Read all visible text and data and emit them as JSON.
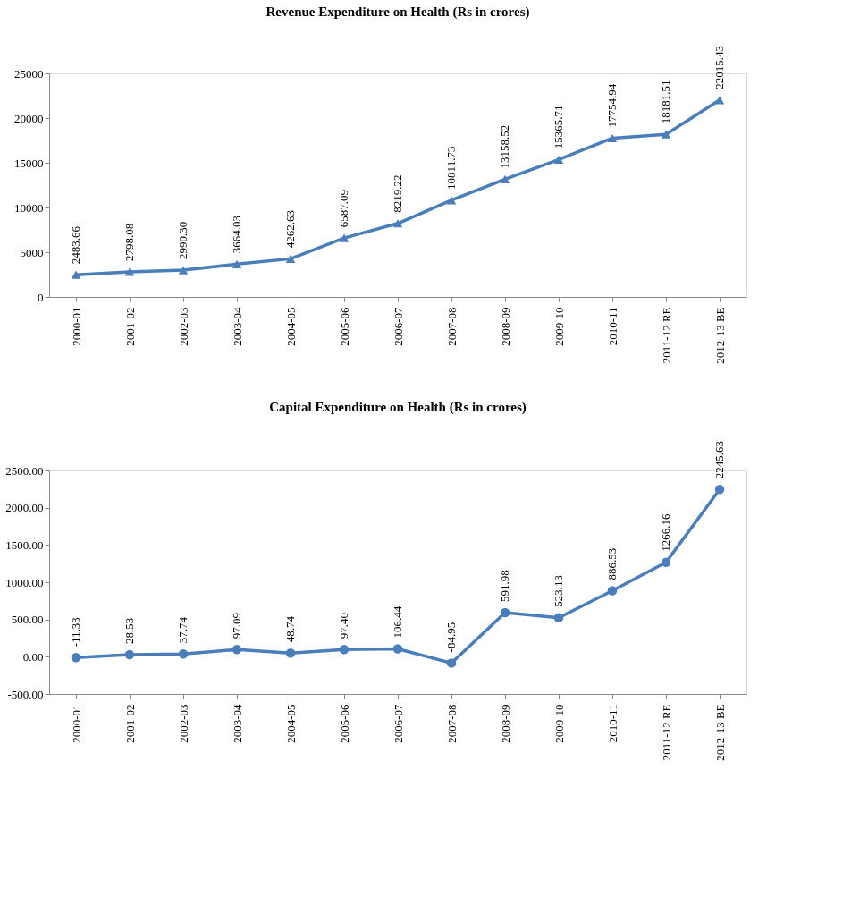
{
  "chart_data": [
    {
      "type": "line",
      "title": "Revenue Expenditure on Health (Rs in crores)",
      "categories": [
        "2000-01",
        "2001-02",
        "2002-03",
        "2003-04",
        "2004-05",
        "2005-06",
        "2006-07",
        "2007-08",
        "2008-09",
        "2009-10",
        "2010-11",
        "2011-12 RE",
        "2012-13 BE"
      ],
      "series": [
        {
          "color": "#4a7ebb",
          "values": [
            2483.66,
            2798.08,
            2990.3,
            3664.03,
            4262.63,
            6587.09,
            8219.22,
            10811.73,
            13158.52,
            15365.71,
            17754.94,
            18181.51,
            22015.43
          ],
          "value_labels": [
            "2483.66",
            "2798.08",
            "2990.30",
            "3664.03",
            "4262.63",
            "6587.09",
            "8219.22",
            "10811.73",
            "13158.52",
            "15365.71",
            "17754.94",
            "18181.51",
            "22015.43"
          ]
        }
      ],
      "ylim": [
        0,
        25000
      ],
      "yticks": [
        0,
        5000,
        10000,
        15000,
        20000,
        25000
      ],
      "marker": "triangle",
      "grid": false
    },
    {
      "type": "line",
      "title": "Capital Expenditure on Health (Rs in crores)",
      "categories": [
        "2000-01",
        "2001-02",
        "2002-03",
        "2003-04",
        "2004-05",
        "2005-06",
        "2006-07",
        "2007-08",
        "2008-09",
        "2009-10",
        "2010-11",
        "2011-12 RE",
        "2012-13 BE"
      ],
      "series": [
        {
          "color": "#4a7ebb",
          "values": [
            -11.33,
            28.53,
            37.74,
            97.09,
            48.74,
            97.4,
            106.44,
            -84.95,
            591.98,
            523.13,
            886.53,
            1266.16,
            2245.63
          ],
          "value_labels": [
            "-11.33",
            "28.53",
            "37.74",
            "97.09",
            "48.74",
            "97.40",
            "106.44",
            "-84.95",
            "591.98",
            "523.13",
            "886.53",
            "1266.16",
            "2245.63"
          ]
        }
      ],
      "ylim": [
        -500,
        2500
      ],
      "yticks": [
        {
          "value": -500,
          "label": "-500.00"
        },
        {
          "value": 0,
          "label": "0.00"
        },
        {
          "value": 500,
          "label": "500.00"
        },
        {
          "value": 1000,
          "label": "1000.00"
        },
        {
          "value": 1500,
          "label": "1500.00"
        },
        {
          "value": 2000,
          "label": "2000.00"
        },
        {
          "value": 2500,
          "label": "2500.00"
        }
      ],
      "marker": "circle",
      "grid": false
    }
  ]
}
